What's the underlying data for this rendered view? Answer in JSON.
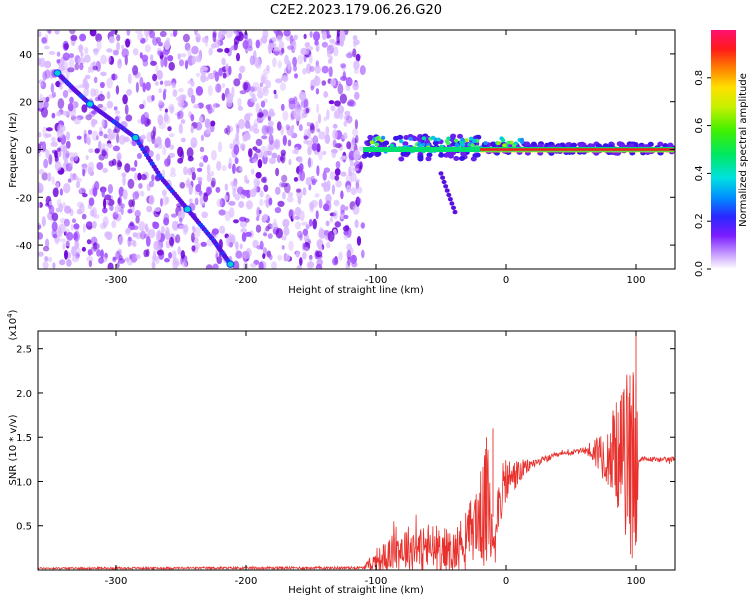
{
  "title": "C2E2.2023.179.06.26.G20",
  "chart_data": [
    {
      "type": "heatmap",
      "title": "C2E2.2023.179.06.26.G20",
      "xlabel": "Height of straight line (km)",
      "ylabel": "Frequency (Hz)",
      "xlim": [
        -360,
        130
      ],
      "ylim": [
        -50,
        50
      ],
      "x_ticks": [
        -300,
        -200,
        -100,
        0,
        100
      ],
      "x_tick_labels": [
        "-300",
        "-200",
        "-100",
        "0",
        "100"
      ],
      "y_ticks": [
        40,
        20,
        0,
        -20,
        -40
      ],
      "y_tick_labels": [
        "40",
        "20",
        "0",
        "-20",
        "-40"
      ],
      "noise_region_x": [
        -360,
        -110
      ],
      "diagonal_trace": {
        "x": [
          -345,
          -332,
          -320,
          -300,
          -285,
          -265,
          -245,
          -225,
          -212
        ],
        "y": [
          32,
          25,
          19,
          11,
          5,
          -12,
          -25,
          -38,
          -48
        ]
      },
      "carrier_line": {
        "x_start": -110,
        "x_end": 130,
        "frequency": 0
      },
      "colorbar": {
        "label": "Normalized spectral amplitude",
        "range": [
          0,
          1
        ],
        "ticks": [
          0.0,
          0.2,
          0.4,
          0.6,
          0.8
        ],
        "tick_labels": [
          "0.0",
          "0.2",
          "0.4",
          "0.6",
          "0.8"
        ]
      }
    },
    {
      "type": "line",
      "xlabel": "Height of straight line (km)",
      "ylabel": "SNR (10 * v/v)",
      "scale_label": "(x10",
      "scale_exponent": "4",
      "scale_close": ")",
      "xlim": [
        -360,
        130
      ],
      "ylim": [
        0,
        27000
      ],
      "x_ticks": [
        -300,
        -200,
        -100,
        0,
        100
      ],
      "x_tick_labels": [
        "-300",
        "-200",
        "-100",
        "0",
        "100"
      ],
      "y_ticks": [
        5000,
        10000,
        15000,
        20000,
        25000
      ],
      "y_tick_labels": [
        "0.5",
        "1.0",
        "1.5",
        "2.0",
        "2.5"
      ],
      "series": [
        {
          "name": "SNR",
          "color": "#e8302c",
          "envelope": {
            "x": [
              -360,
              -110,
              -100,
              -80,
              -60,
              -40,
              -30,
              -20,
              -12,
              -10,
              -5,
              0,
              5,
              20,
              40,
              60,
              80,
              90,
              100,
              102,
              105,
              130
            ],
            "base": [
              200,
              250,
              1000,
              2500,
              2500,
              2000,
              4000,
              6000,
              7000,
              4000,
              8000,
              10000,
              10500,
              12000,
              13000,
              13500,
              13200,
              12800,
              12500,
              12500,
              12500,
              12500
            ],
            "amp": [
              100,
              150,
              1200,
              2500,
              3000,
              2500,
              3000,
              5000,
              9000,
              3000,
              3000,
              3000,
              2000,
              500,
              300,
              300,
              4000,
              8000,
              14000,
              500,
              300,
              300
            ]
          }
        }
      ]
    }
  ],
  "colors": {
    "noise_light": "#d9b8ff",
    "noise_mid": "#a050ff",
    "noise_dark": "#6a00d8",
    "line": "#e8302c"
  }
}
